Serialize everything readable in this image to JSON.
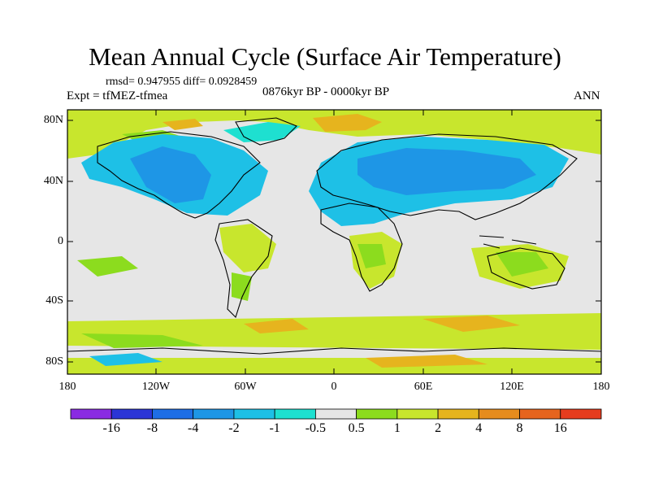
{
  "title": "Mean Annual Cycle (Surface Air Temperature)",
  "stats": "rmsd= 0.947955 diff= 0.0928459",
  "experiment": "Expt = tfMEZ-tfmea",
  "period": "0876kyr BP - 0000kyr BP",
  "season": "ANN",
  "map": {
    "lon_range": [
      -180,
      180
    ],
    "lat_range": [
      -90,
      90
    ],
    "x_ticks": [
      "180",
      "120W",
      "60W",
      "0",
      "60E",
      "120E",
      "180"
    ],
    "y_ticks": [
      "80N",
      "40N",
      "0",
      "40S",
      "80S"
    ]
  },
  "colorbar": {
    "colors": [
      "#8a2be2",
      "#2b35d6",
      "#1e6ee6",
      "#1e96e6",
      "#1ec0e6",
      "#1ee0d0",
      "#e6e6e6",
      "#8cdc1e",
      "#c8e62d",
      "#e6b41e",
      "#e68c1e",
      "#e6641e",
      "#e63c1e"
    ],
    "labels": [
      "-16",
      "-8",
      "-4",
      "-2",
      "-1",
      "-0.5",
      "0.5",
      "1",
      "2",
      "4",
      "8",
      "16"
    ]
  },
  "field_colors": {
    "neutral": "#e6e6e6",
    "warm_1": "#8cdc1e",
    "warm_2": "#c8e62d",
    "warm_4": "#e6b41e",
    "cool_1": "#1ec0e6",
    "cool_2": "#1e96e6",
    "cool_05": "#1ee0d0"
  }
}
